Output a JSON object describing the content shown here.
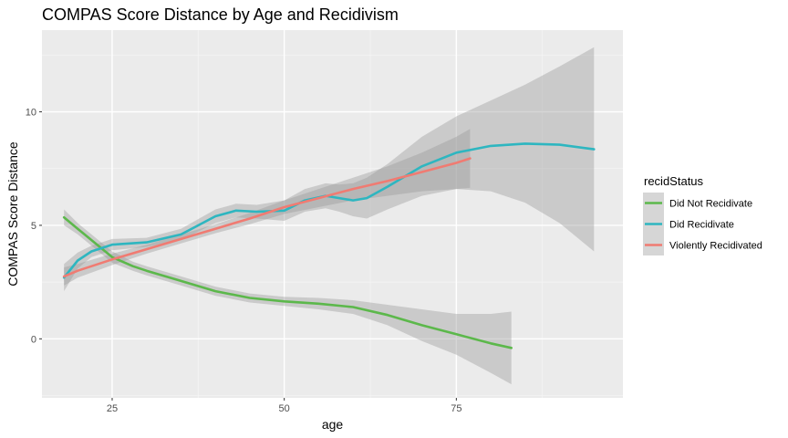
{
  "chart_data": {
    "type": "line",
    "title": "COMPAS Score Distance by Age and Recidivism",
    "xlabel": "age",
    "ylabel": "COMPAS Score Distance",
    "xlim": [
      14.8,
      99.2
    ],
    "ylim": [
      -2.6,
      13.6
    ],
    "x_ticks": [
      25,
      50,
      75
    ],
    "y_ticks": [
      0,
      5,
      10
    ],
    "grid": true,
    "legend": {
      "title": "recidStatus",
      "position": "right"
    },
    "series": [
      {
        "name": "Did Not Recidivate",
        "color": "#5cb84b",
        "points": [
          [
            18,
            5.35
          ],
          [
            20,
            4.85
          ],
          [
            22,
            4.35
          ],
          [
            25,
            3.6
          ],
          [
            28,
            3.2
          ],
          [
            30,
            3.0
          ],
          [
            35,
            2.55
          ],
          [
            40,
            2.1
          ],
          [
            45,
            1.8
          ],
          [
            50,
            1.65
          ],
          [
            55,
            1.55
          ],
          [
            60,
            1.4
          ],
          [
            65,
            1.05
          ],
          [
            70,
            0.6
          ],
          [
            75,
            0.2
          ],
          [
            80,
            -0.2
          ],
          [
            83,
            -0.4
          ]
        ],
        "band_upper": [
          [
            18,
            5.7
          ],
          [
            20,
            5.1
          ],
          [
            22,
            4.6
          ],
          [
            25,
            3.85
          ],
          [
            28,
            3.4
          ],
          [
            30,
            3.2
          ],
          [
            35,
            2.75
          ],
          [
            40,
            2.3
          ],
          [
            45,
            2.0
          ],
          [
            50,
            1.85
          ],
          [
            55,
            1.8
          ],
          [
            60,
            1.7
          ],
          [
            65,
            1.5
          ],
          [
            70,
            1.3
          ],
          [
            75,
            1.1
          ],
          [
            80,
            1.1
          ],
          [
            83,
            1.2
          ]
        ],
        "band_lower": [
          [
            18,
            5.0
          ],
          [
            20,
            4.6
          ],
          [
            22,
            4.1
          ],
          [
            25,
            3.35
          ],
          [
            28,
            3.0
          ],
          [
            30,
            2.8
          ],
          [
            35,
            2.35
          ],
          [
            40,
            1.9
          ],
          [
            45,
            1.6
          ],
          [
            50,
            1.45
          ],
          [
            55,
            1.3
          ],
          [
            60,
            1.1
          ],
          [
            65,
            0.6
          ],
          [
            70,
            -0.1
          ],
          [
            75,
            -0.7
          ],
          [
            80,
            -1.5
          ],
          [
            83,
            -2.0
          ]
        ]
      },
      {
        "name": "Did Recidivate",
        "color": "#2eb6c0",
        "points": [
          [
            18,
            2.7
          ],
          [
            20,
            3.45
          ],
          [
            22,
            3.85
          ],
          [
            25,
            4.15
          ],
          [
            30,
            4.25
          ],
          [
            35,
            4.6
          ],
          [
            40,
            5.4
          ],
          [
            43,
            5.65
          ],
          [
            46,
            5.6
          ],
          [
            50,
            5.65
          ],
          [
            53,
            6.1
          ],
          [
            56,
            6.3
          ],
          [
            58,
            6.2
          ],
          [
            60,
            6.1
          ],
          [
            62,
            6.2
          ],
          [
            65,
            6.7
          ],
          [
            70,
            7.6
          ],
          [
            75,
            8.2
          ],
          [
            80,
            8.5
          ],
          [
            85,
            8.6
          ],
          [
            90,
            8.55
          ],
          [
            95,
            8.35
          ]
        ],
        "band_upper": [
          [
            18,
            3.3
          ],
          [
            20,
            3.8
          ],
          [
            22,
            4.1
          ],
          [
            25,
            4.4
          ],
          [
            30,
            4.45
          ],
          [
            35,
            4.85
          ],
          [
            40,
            5.7
          ],
          [
            43,
            5.95
          ],
          [
            46,
            5.9
          ],
          [
            50,
            6.1
          ],
          [
            53,
            6.6
          ],
          [
            56,
            6.85
          ],
          [
            58,
            6.8
          ],
          [
            60,
            6.85
          ],
          [
            62,
            7.1
          ],
          [
            65,
            7.7
          ],
          [
            70,
            8.9
          ],
          [
            75,
            9.8
          ],
          [
            80,
            10.5
          ],
          [
            85,
            11.2
          ],
          [
            90,
            12.0
          ],
          [
            95,
            12.85
          ]
        ],
        "band_lower": [
          [
            18,
            2.1
          ],
          [
            20,
            3.1
          ],
          [
            22,
            3.6
          ],
          [
            25,
            3.9
          ],
          [
            30,
            4.05
          ],
          [
            35,
            4.35
          ],
          [
            40,
            5.1
          ],
          [
            43,
            5.35
          ],
          [
            46,
            5.3
          ],
          [
            50,
            5.2
          ],
          [
            53,
            5.6
          ],
          [
            56,
            5.75
          ],
          [
            58,
            5.6
          ],
          [
            60,
            5.4
          ],
          [
            62,
            5.3
          ],
          [
            65,
            5.7
          ],
          [
            70,
            6.3
          ],
          [
            75,
            6.6
          ],
          [
            80,
            6.5
          ],
          [
            85,
            6.0
          ],
          [
            90,
            5.1
          ],
          [
            95,
            3.85
          ]
        ]
      },
      {
        "name": "Violently Recidivated",
        "color": "#f07b72",
        "points": [
          [
            18,
            2.75
          ],
          [
            20,
            3.0
          ],
          [
            25,
            3.5
          ],
          [
            30,
            3.95
          ],
          [
            35,
            4.4
          ],
          [
            40,
            4.85
          ],
          [
            45,
            5.3
          ],
          [
            50,
            5.8
          ],
          [
            55,
            6.2
          ],
          [
            60,
            6.6
          ],
          [
            65,
            6.95
          ],
          [
            70,
            7.35
          ],
          [
            75,
            7.75
          ],
          [
            77,
            7.95
          ]
        ],
        "band_upper": [
          [
            18,
            3.15
          ],
          [
            20,
            3.3
          ],
          [
            25,
            3.75
          ],
          [
            30,
            4.15
          ],
          [
            35,
            4.6
          ],
          [
            40,
            5.05
          ],
          [
            45,
            5.55
          ],
          [
            50,
            6.1
          ],
          [
            55,
            6.6
          ],
          [
            60,
            7.1
          ],
          [
            65,
            7.6
          ],
          [
            70,
            8.2
          ],
          [
            75,
            8.9
          ],
          [
            77,
            9.25
          ]
        ],
        "band_lower": [
          [
            18,
            2.35
          ],
          [
            20,
            2.7
          ],
          [
            25,
            3.25
          ],
          [
            30,
            3.75
          ],
          [
            35,
            4.2
          ],
          [
            40,
            4.65
          ],
          [
            45,
            5.05
          ],
          [
            50,
            5.5
          ],
          [
            55,
            5.8
          ],
          [
            60,
            6.1
          ],
          [
            65,
            6.3
          ],
          [
            70,
            6.5
          ],
          [
            75,
            6.6
          ],
          [
            77,
            6.65
          ]
        ]
      }
    ]
  }
}
